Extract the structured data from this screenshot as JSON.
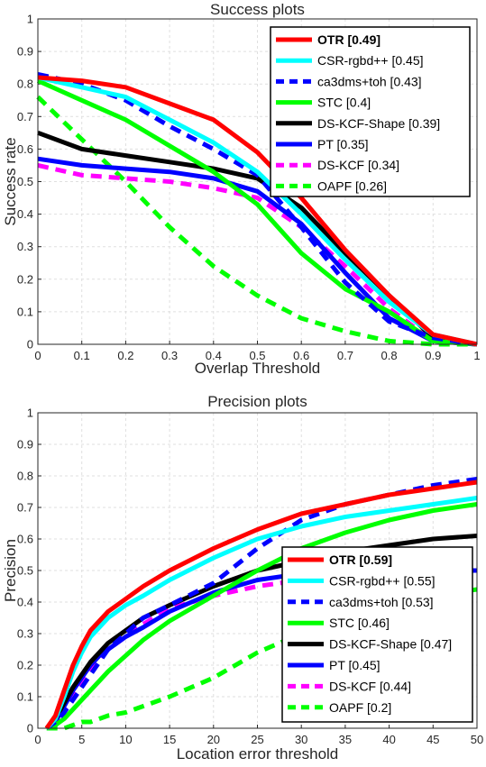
{
  "chart_data": [
    {
      "type": "line",
      "title": "Success plots",
      "xlabel": "Overlap Threshold",
      "ylabel": "Success rate",
      "xlim": [
        0,
        1
      ],
      "ylim": [
        0,
        1
      ],
      "xticks": [
        "0",
        "0.1",
        "0.2",
        "0.3",
        "0.4",
        "0.5",
        "0.6",
        "0.7",
        "0.8",
        "0.9",
        "1"
      ],
      "yticks": [
        "0",
        "0.1",
        "0.2",
        "0.3",
        "0.4",
        "0.5",
        "0.6",
        "0.7",
        "0.8",
        "0.9",
        "1"
      ],
      "grid": true,
      "legend_position": "top-right",
      "x": [
        0,
        0.1,
        0.2,
        0.3,
        0.4,
        0.5,
        0.6,
        0.7,
        0.8,
        0.9,
        1.0
      ],
      "series": [
        {
          "name": "OTR [0.49]",
          "color": "#ff0000",
          "dash": "solid",
          "bold": true,
          "values": [
            0.82,
            0.81,
            0.79,
            0.74,
            0.69,
            0.59,
            0.45,
            0.29,
            0.15,
            0.03,
            0.0
          ]
        },
        {
          "name": "CSR-rgbd++ [0.45]",
          "color": "#00ffff",
          "dash": "solid",
          "values": [
            0.82,
            0.79,
            0.76,
            0.69,
            0.62,
            0.53,
            0.4,
            0.26,
            0.13,
            0.03,
            0.0
          ]
        },
        {
          "name": "ca3dms+toh [0.43]",
          "color": "#0000ff",
          "dash": "dashed",
          "values": [
            0.83,
            0.8,
            0.75,
            0.67,
            0.6,
            0.52,
            0.36,
            0.19,
            0.07,
            0.02,
            0.0
          ]
        },
        {
          "name": "STC [0.4]",
          "color": "#00ff00",
          "dash": "solid",
          "values": [
            0.81,
            0.75,
            0.69,
            0.61,
            0.53,
            0.43,
            0.28,
            0.17,
            0.1,
            0.01,
            0.0
          ]
        },
        {
          "name": "DS-KCF-Shape [0.39]",
          "color": "#000000",
          "dash": "solid",
          "values": [
            0.65,
            0.6,
            0.58,
            0.56,
            0.54,
            0.51,
            0.42,
            0.28,
            0.15,
            0.02,
            0.0
          ]
        },
        {
          "name": "PT [0.35]",
          "color": "#0000ff",
          "dash": "solid",
          "values": [
            0.57,
            0.55,
            0.54,
            0.53,
            0.51,
            0.47,
            0.37,
            0.22,
            0.08,
            0.01,
            0.0
          ]
        },
        {
          "name": "DS-KCF [0.34]",
          "color": "#ff00ff",
          "dash": "dashed",
          "values": [
            0.55,
            0.52,
            0.51,
            0.5,
            0.48,
            0.45,
            0.36,
            0.24,
            0.11,
            0.01,
            0.0
          ]
        },
        {
          "name": "OAPF [0.26]",
          "color": "#00ff00",
          "dash": "dashed",
          "values": [
            0.76,
            0.63,
            0.5,
            0.36,
            0.24,
            0.15,
            0.08,
            0.04,
            0.01,
            0.0,
            0.0
          ]
        }
      ]
    },
    {
      "type": "line",
      "title": "Precision plots",
      "xlabel": "Location error threshold",
      "ylabel": "Precision",
      "xlim": [
        0,
        50
      ],
      "ylim": [
        0,
        1
      ],
      "xticks": [
        "0",
        "5",
        "10",
        "15",
        "20",
        "25",
        "30",
        "35",
        "40",
        "45",
        "50"
      ],
      "yticks": [
        "0",
        "0.1",
        "0.2",
        "0.3",
        "0.4",
        "0.5",
        "0.6",
        "0.7",
        "0.8",
        "0.9",
        "1"
      ],
      "grid": true,
      "legend_position": "bottom-right",
      "x": [
        1,
        2,
        3,
        4,
        5,
        6,
        7,
        8,
        10,
        12,
        15,
        20,
        25,
        30,
        35,
        40,
        45,
        50
      ],
      "series": [
        {
          "name": "OTR [0.59]",
          "color": "#ff0000",
          "dash": "solid",
          "bold": true,
          "values": [
            0.0,
            0.04,
            0.12,
            0.2,
            0.26,
            0.31,
            0.34,
            0.37,
            0.41,
            0.45,
            0.5,
            0.57,
            0.63,
            0.68,
            0.71,
            0.74,
            0.76,
            0.78
          ]
        },
        {
          "name": "CSR-rgbd++ [0.55]",
          "color": "#00ffff",
          "dash": "solid",
          "values": [
            0.0,
            0.03,
            0.1,
            0.18,
            0.24,
            0.29,
            0.32,
            0.35,
            0.39,
            0.42,
            0.47,
            0.54,
            0.6,
            0.64,
            0.67,
            0.69,
            0.71,
            0.73
          ]
        },
        {
          "name": "ca3dms+toh [0.53]",
          "color": "#0000ff",
          "dash": "dashed",
          "values": [
            0.0,
            0.02,
            0.05,
            0.09,
            0.13,
            0.17,
            0.21,
            0.25,
            0.3,
            0.35,
            0.39,
            0.46,
            0.57,
            0.66,
            0.71,
            0.74,
            0.77,
            0.79
          ]
        },
        {
          "name": "STC [0.46]",
          "color": "#00ff00",
          "dash": "solid",
          "values": [
            0.0,
            0.01,
            0.03,
            0.06,
            0.09,
            0.12,
            0.15,
            0.18,
            0.23,
            0.28,
            0.34,
            0.42,
            0.5,
            0.57,
            0.62,
            0.66,
            0.69,
            0.71
          ]
        },
        {
          "name": "DS-KCF-Shape [0.47]",
          "color": "#000000",
          "dash": "solid",
          "values": [
            0.0,
            0.03,
            0.08,
            0.13,
            0.17,
            0.21,
            0.24,
            0.27,
            0.31,
            0.35,
            0.39,
            0.45,
            0.5,
            0.53,
            0.56,
            0.58,
            0.6,
            0.61
          ]
        },
        {
          "name": "PT [0.45]",
          "color": "#0000ff",
          "dash": "solid",
          "values": [
            0.0,
            0.02,
            0.07,
            0.12,
            0.16,
            0.2,
            0.23,
            0.25,
            0.29,
            0.32,
            0.37,
            0.43,
            0.47,
            0.49,
            0.5,
            0.5,
            0.5,
            0.5
          ]
        },
        {
          "name": "DS-KCF [0.44]",
          "color": "#ff00ff",
          "dash": "dashed",
          "values": [
            0.0,
            0.02,
            0.06,
            0.11,
            0.15,
            0.19,
            0.22,
            0.25,
            0.29,
            0.33,
            0.38,
            0.42,
            0.45,
            0.47,
            0.49,
            0.5,
            0.51,
            0.52
          ]
        },
        {
          "name": "OAPF [0.2]",
          "color": "#00ff00",
          "dash": "dashed",
          "values": [
            0.0,
            0.0,
            0.0,
            0.01,
            0.02,
            0.02,
            0.03,
            0.04,
            0.05,
            0.07,
            0.1,
            0.16,
            0.24,
            0.3,
            0.35,
            0.39,
            0.42,
            0.44
          ]
        }
      ]
    }
  ]
}
